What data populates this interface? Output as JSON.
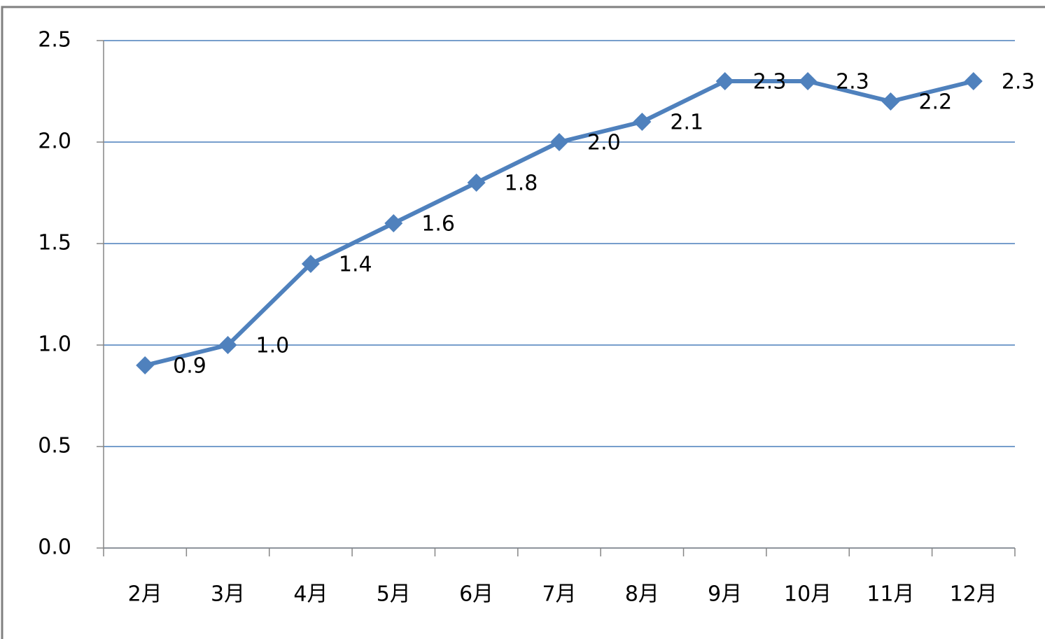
{
  "chart_data": {
    "type": "line",
    "categories": [
      "2月",
      "3月",
      "4月",
      "5月",
      "6月",
      "7月",
      "8月",
      "9月",
      "10月",
      "11月",
      "12月"
    ],
    "series": [
      {
        "color": "#4f81bd",
        "values": [
          0.9,
          1.0,
          1.4,
          1.6,
          1.8,
          2.0,
          2.1,
          2.3,
          2.3,
          2.2,
          2.3
        ],
        "value_labels": [
          "0.9",
          "1.0",
          "1.4",
          "1.6",
          "1.8",
          "2.0",
          "2.1",
          "2.3",
          "2.3",
          "2.2",
          "2.3"
        ]
      }
    ],
    "ylim": [
      0,
      2.5
    ],
    "yticks": [
      {
        "value": 0,
        "label": "0.0"
      },
      0.5,
      {
        "value": 1,
        "label": "1.0"
      },
      1.5,
      {
        "value": 2,
        "label": "2.0"
      },
      2.5
    ],
    "grid": true
  }
}
